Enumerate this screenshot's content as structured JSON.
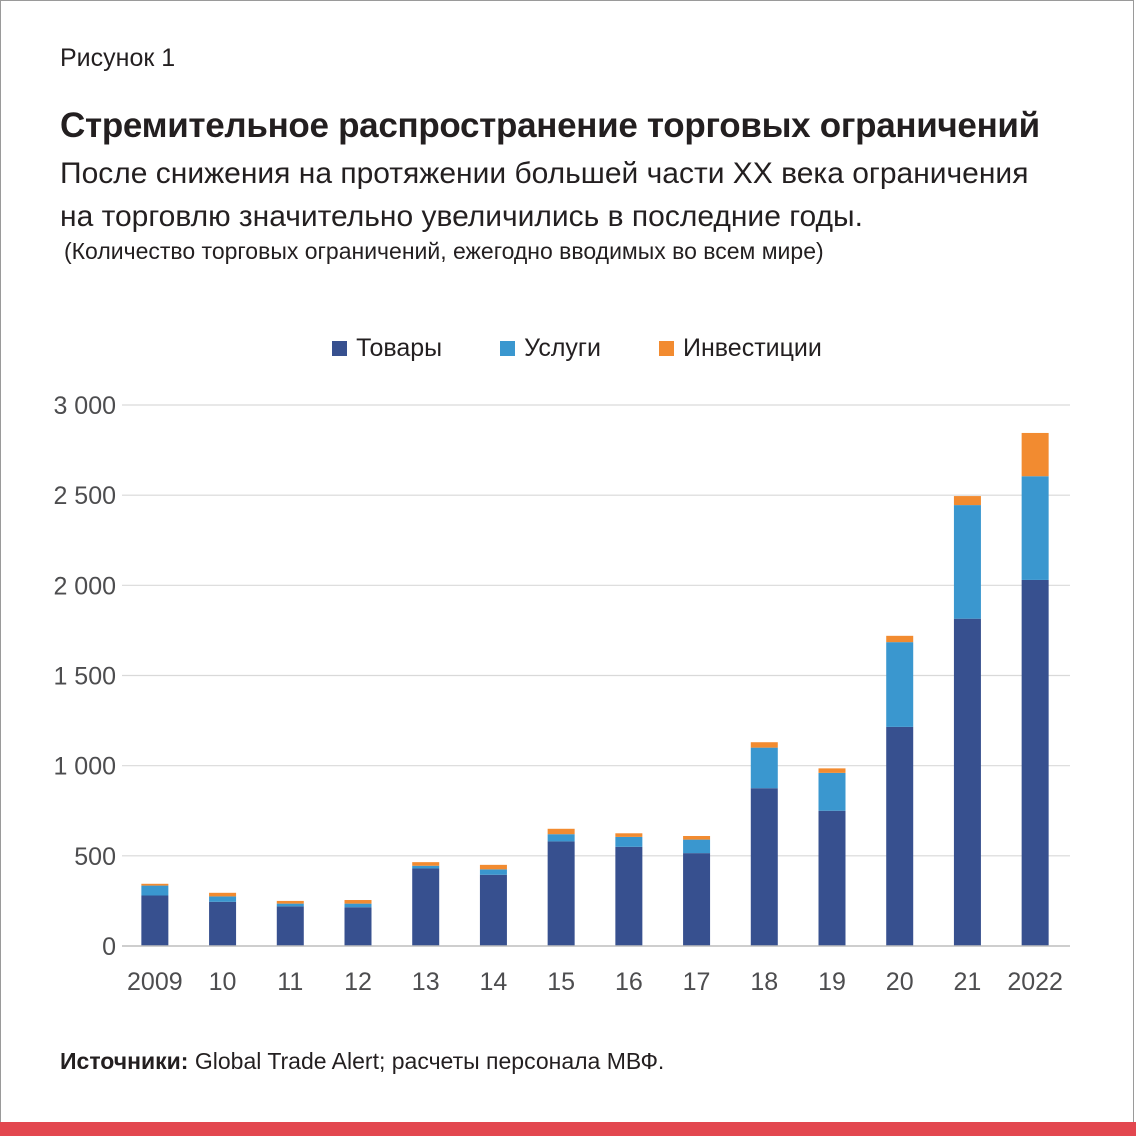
{
  "figure_label": "Рисунок 1",
  "title": "Стремительное распространение торговых ограничений",
  "subtitle": "После снижения на протяжении большей части XX века ограничения на торговлю значительно увеличились в последние годы.",
  "unit_note": "(Количество торговых ограничений, ежегодно вводимых во всем мире)",
  "source": {
    "label": "Источники:",
    "text": " Global Trade Alert; расчеты персонала МВФ."
  },
  "colors": {
    "goods": "#37508f",
    "services": "#3a97cf",
    "investment": "#f28b30",
    "grid": "#d9d9d9",
    "accent_bar": "#e3474f"
  },
  "chart_data": {
    "type": "bar",
    "stacked": true,
    "categories": [
      "2009",
      "10",
      "11",
      "12",
      "13",
      "14",
      "15",
      "16",
      "17",
      "18",
      "19",
      "20",
      "21",
      "2022"
    ],
    "series": [
      {
        "name": "Товары",
        "values": [
          280,
          245,
          220,
          215,
          430,
          395,
          580,
          550,
          515,
          875,
          750,
          1215,
          1815,
          2030
        ]
      },
      {
        "name": "Услуги",
        "values": [
          55,
          30,
          15,
          20,
          15,
          30,
          40,
          55,
          75,
          225,
          210,
          470,
          630,
          575
        ]
      },
      {
        "name": "Инвестиции",
        "values": [
          10,
          20,
          15,
          20,
          20,
          25,
          30,
          20,
          20,
          30,
          25,
          35,
          50,
          240
        ]
      }
    ],
    "ylim": [
      0,
      3000
    ],
    "yticks": [
      0,
      500,
      1000,
      1500,
      2000,
      2500,
      3000
    ],
    "ytick_labels": [
      "0",
      "500",
      "1 000",
      "1 500",
      "2 000",
      "2 500",
      "3 000"
    ],
    "grid": true,
    "legend_position": "top-center"
  }
}
